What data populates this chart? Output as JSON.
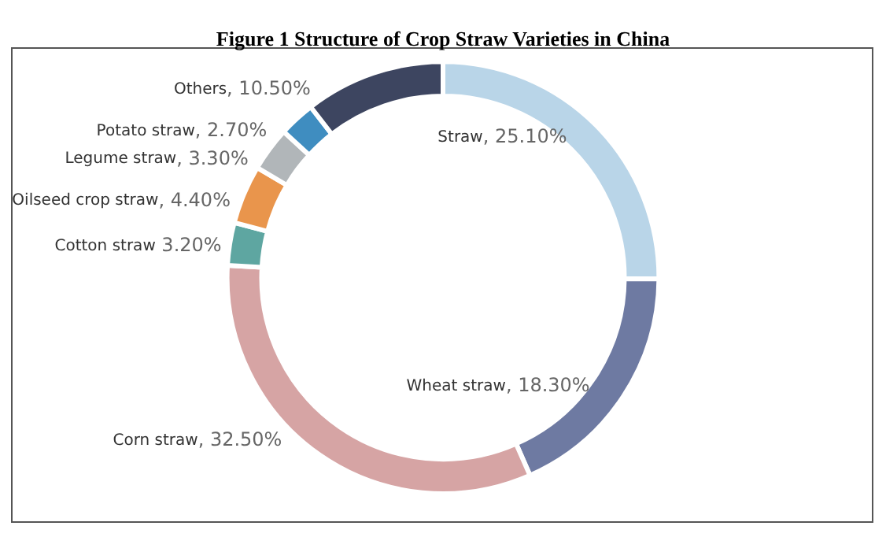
{
  "chart_data": {
    "type": "donut",
    "title": "Figure 1 Structure of Crop Straw Varieties in China",
    "categories": [
      "Straw",
      "Wheat straw",
      "Corn straw",
      "Cotton straw",
      "Oilseed crop straw",
      "Legume straw",
      "Potato straw",
      "Others"
    ],
    "values": [
      25.1,
      18.3,
      32.5,
      3.2,
      4.4,
      3.3,
      2.7,
      10.5
    ],
    "value_labels": [
      ", 25.10%",
      ", 18.30%",
      ", 32.50%",
      " 3.20%",
      ", 4.40%",
      ", 3.30%",
      ", 2.70%",
      ", 10.50%"
    ],
    "colors": [
      "#b9d5e8",
      "#6e7aa2",
      "#d6a4a4",
      "#5ea6a1",
      "#e9954c",
      "#b1b6b9",
      "#3f8dc0",
      "#3d4560"
    ],
    "legend": false
  }
}
